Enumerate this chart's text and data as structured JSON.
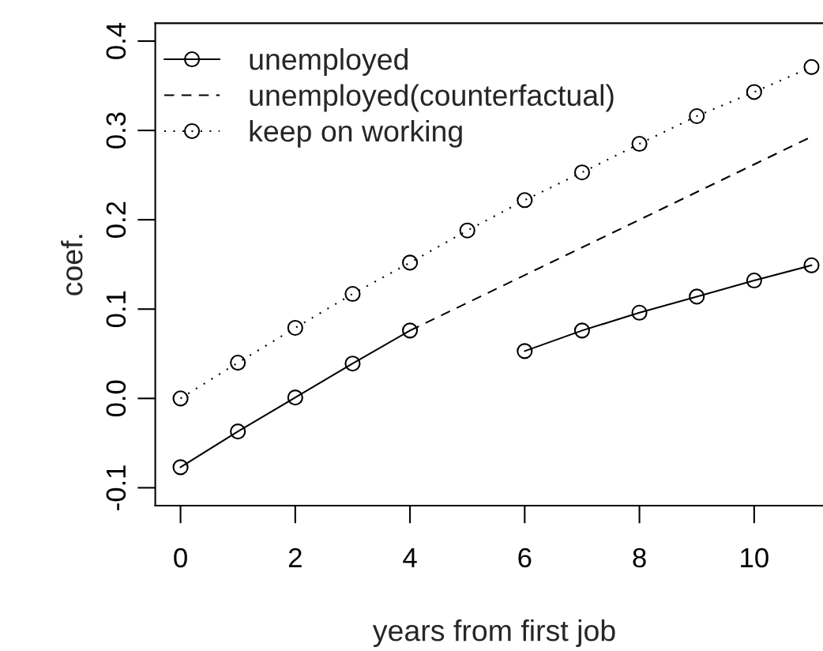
{
  "chart_data": {
    "type": "line",
    "xlabel": "years from first job",
    "ylabel": "coef.",
    "x": [
      0,
      1,
      2,
      3,
      4,
      5,
      6,
      7,
      8,
      9,
      10,
      11
    ],
    "series": [
      {
        "name": "unemployed",
        "color": "#000000",
        "marker": "circle",
        "line_style": "solid",
        "values": [
          -0.077,
          -0.037,
          0.001,
          0.039,
          0.076,
          null,
          0.053,
          0.076,
          0.096,
          0.114,
          0.132,
          0.149
        ]
      },
      {
        "name": "unemployed(counterfactual)",
        "color": "#000000",
        "marker": "none",
        "line_style": "dashed",
        "x": [
          4,
          11
        ],
        "values": [
          0.076,
          0.293
        ]
      },
      {
        "name": "keep on working",
        "color": "#000000",
        "marker": "circle",
        "line_style": "dotted",
        "values": [
          0.0,
          0.04,
          0.079,
          0.117,
          0.152,
          0.188,
          0.222,
          0.253,
          0.285,
          0.316,
          0.343,
          0.371
        ]
      }
    ],
    "xlim": [
      -0.44,
      11.2
    ],
    "xticks": [
      0,
      2,
      4,
      6,
      8,
      10
    ],
    "ylim": [
      -0.12,
      0.42
    ],
    "yticks": [
      -0.1,
      {
        "value": 0,
        "label": "0.0"
      },
      0.1,
      0.2,
      0.3,
      0.4
    ],
    "legend": "top left"
  }
}
